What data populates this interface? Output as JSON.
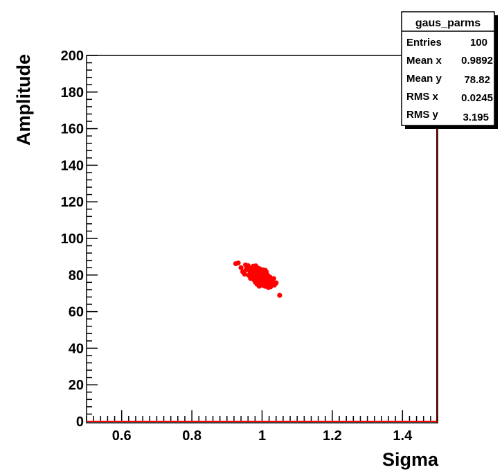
{
  "chart_data": {
    "type": "scatter",
    "title": "",
    "xlabel": "Sigma",
    "ylabel": "Amplitude",
    "xlim": [
      0.5,
      1.5
    ],
    "ylim": [
      0,
      200
    ],
    "x_ticks": [
      "0.6",
      "0.8",
      "1",
      "1.2",
      "1.4"
    ],
    "y_ticks": [
      "0",
      "20",
      "40",
      "60",
      "80",
      "100",
      "120",
      "140",
      "160",
      "180",
      "200"
    ],
    "grid": false,
    "marker_color": "#ff0000",
    "series": [
      {
        "points": [
          [
            0.925,
            86.2
          ],
          [
            0.932,
            86.6
          ],
          [
            0.94,
            84.0
          ],
          [
            0.945,
            81.8
          ],
          [
            0.95,
            80.5
          ],
          [
            0.955,
            82.9
          ],
          [
            0.96,
            85.1
          ],
          [
            0.962,
            79.8
          ],
          [
            0.965,
            82.2
          ],
          [
            0.968,
            83.7
          ],
          [
            0.97,
            80.9
          ],
          [
            0.972,
            78.6
          ],
          [
            0.975,
            84.8
          ],
          [
            0.976,
            81.4
          ],
          [
            0.978,
            79.4
          ],
          [
            0.98,
            83.0
          ],
          [
            0.981,
            77.5
          ],
          [
            0.983,
            80.2
          ],
          [
            0.985,
            82.3
          ],
          [
            0.986,
            78.4
          ],
          [
            0.988,
            76.3
          ],
          [
            0.99,
            81.0
          ],
          [
            0.991,
            79.0
          ],
          [
            0.993,
            83.4
          ],
          [
            0.994,
            77.1
          ],
          [
            0.995,
            80.0
          ],
          [
            0.997,
            75.2
          ],
          [
            0.998,
            78.7
          ],
          [
            1.0,
            82.0
          ],
          [
            1.001,
            76.5
          ],
          [
            1.002,
            79.5
          ],
          [
            1.004,
            74.2
          ],
          [
            1.005,
            77.8
          ],
          [
            1.006,
            80.7
          ],
          [
            1.008,
            76.0
          ],
          [
            1.009,
            78.2
          ],
          [
            1.01,
            73.8
          ],
          [
            1.012,
            81.7
          ],
          [
            1.013,
            75.4
          ],
          [
            1.015,
            77.4
          ],
          [
            1.016,
            79.2
          ],
          [
            1.018,
            74.8
          ],
          [
            1.02,
            76.8
          ],
          [
            1.022,
            78.9
          ],
          [
            1.024,
            73.5
          ],
          [
            1.026,
            75.9
          ],
          [
            1.03,
            77.6
          ],
          [
            1.035,
            74.5
          ],
          [
            1.04,
            75.7
          ],
          [
            1.05,
            68.9
          ],
          [
            0.958,
            84.4
          ],
          [
            0.966,
            81.5
          ],
          [
            0.973,
            80.4
          ],
          [
            0.979,
            82.7
          ],
          [
            0.984,
            79.6
          ],
          [
            0.987,
            81.3
          ],
          [
            0.989,
            77.9
          ],
          [
            0.992,
            80.6
          ],
          [
            0.996,
            76.9
          ],
          [
            0.999,
            79.3
          ],
          [
            1.003,
            81.4
          ],
          [
            1.007,
            77.2
          ],
          [
            1.011,
            79.9
          ],
          [
            1.014,
            76.2
          ],
          [
            1.017,
            78.5
          ],
          [
            1.019,
            75.1
          ],
          [
            1.021,
            77.0
          ],
          [
            1.025,
            74.1
          ],
          [
            0.982,
            85.0
          ],
          [
            0.994,
            83.2
          ],
          [
            1.001,
            80.3
          ],
          [
            1.006,
            74.6
          ],
          [
            0.977,
            77.3
          ],
          [
            0.969,
            79.1
          ],
          [
            0.99,
            75.6
          ],
          [
            1.009,
            82.6
          ],
          [
            1.028,
            76.4
          ],
          [
            1.033,
            78.1
          ],
          [
            0.963,
            83.1
          ],
          [
            0.986,
            74.9
          ],
          [
            0.997,
            81.9
          ],
          [
            1.004,
            78.0
          ],
          [
            1.012,
            75.0
          ],
          [
            0.974,
            82.5
          ],
          [
            0.981,
            76.0
          ],
          [
            0.992,
            73.9
          ],
          [
            1.015,
            80.1
          ],
          [
            1.023,
            77.7
          ],
          [
            0.953,
            85.5
          ],
          [
            0.971,
            84.1
          ],
          [
            0.988,
            83.8
          ],
          [
            0.999,
            77.0
          ],
          [
            1.008,
            80.9
          ],
          [
            1.018,
            73.2
          ],
          [
            0.979,
            80.0
          ],
          [
            0.995,
            75.8
          ],
          [
            1.002,
            82.8
          ],
          [
            1.01,
            76.6
          ],
          [
            0.967,
            78.2
          ],
          [
            0.984,
            81.8
          ]
        ]
      }
    ],
    "stats_box": {
      "title": "gaus_parms",
      "rows": [
        {
          "label": "Entries",
          "value": "100"
        },
        {
          "label": "Mean x",
          "value": "0.9892"
        },
        {
          "label": "Mean y",
          "value": "78.82"
        },
        {
          "label": "RMS x",
          "value": "0.0245"
        },
        {
          "label": "RMS y",
          "value": "3.195"
        }
      ]
    }
  }
}
